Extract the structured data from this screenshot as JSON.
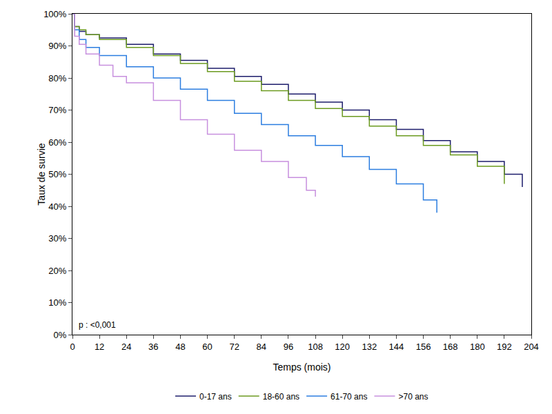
{
  "chart_data": {
    "type": "line",
    "x_label": "Temps (mois)",
    "y_label": "Taux de survie",
    "annotations": [
      "p : <0,001"
    ],
    "legend": "bottom",
    "grid": false,
    "xlim": [
      0,
      204
    ],
    "xticks": [
      0,
      12,
      24,
      36,
      48,
      60,
      72,
      84,
      96,
      108,
      120,
      132,
      144,
      156,
      168,
      180,
      192,
      204
    ],
    "ylim": [
      0,
      100
    ],
    "yticks": [
      {
        "value": 0,
        "label": "0%"
      },
      {
        "value": 10,
        "label": "10%"
      },
      {
        "value": 20,
        "label": "20%"
      },
      {
        "value": 30,
        "label": "30%"
      },
      {
        "value": 40,
        "label": "40%"
      },
      {
        "value": 50,
        "label": "50%"
      },
      {
        "value": 60,
        "label": "60%"
      },
      {
        "value": 70,
        "label": "70%"
      },
      {
        "value": 80,
        "label": "80%"
      },
      {
        "value": 90,
        "label": "90%"
      },
      {
        "value": 100,
        "label": "100%"
      }
    ],
    "series": [
      {
        "name": "0-17 ans",
        "color": "#1c1c6b",
        "x": [
          0,
          1,
          3,
          6,
          12,
          24,
          36,
          48,
          60,
          72,
          84,
          96,
          108,
          120,
          132,
          144,
          156,
          168,
          180,
          192,
          200
        ],
        "values": [
          100,
          96,
          94.5,
          93.5,
          92.5,
          90.5,
          87.5,
          85.5,
          83,
          80.5,
          78,
          75,
          72.5,
          70,
          67,
          64,
          60.5,
          57,
          54,
          50,
          46
        ]
      },
      {
        "name": "18-60 ans",
        "color": "#6b9a1f",
        "x": [
          0,
          1,
          3,
          6,
          12,
          24,
          36,
          48,
          60,
          72,
          84,
          96,
          108,
          120,
          132,
          144,
          156,
          168,
          180,
          192
        ],
        "values": [
          100,
          96,
          95,
          93.5,
          92,
          89.5,
          87,
          84.5,
          82,
          79,
          76,
          73,
          70.5,
          68,
          65,
          62,
          59,
          56,
          52.5,
          47
        ]
      },
      {
        "name": "61-70 ans",
        "color": "#2b7de0",
        "x": [
          0,
          1,
          3,
          6,
          12,
          24,
          36,
          48,
          60,
          72,
          84,
          96,
          108,
          120,
          132,
          144,
          156,
          162
        ],
        "values": [
          100,
          95,
          92,
          89.5,
          87,
          83.5,
          80,
          76.5,
          73,
          69,
          65.5,
          62,
          59,
          55.5,
          51.5,
          47,
          42,
          38
        ]
      },
      {
        "name": ">70 ans",
        "color": "#c78fde",
        "x": [
          0,
          1,
          3,
          6,
          12,
          18,
          24,
          36,
          48,
          60,
          72,
          84,
          96,
          104,
          108
        ],
        "values": [
          100,
          93,
          90.5,
          87.5,
          84,
          80.5,
          78.5,
          73,
          67,
          62.5,
          57.5,
          54,
          49,
          45,
          43
        ]
      }
    ]
  }
}
